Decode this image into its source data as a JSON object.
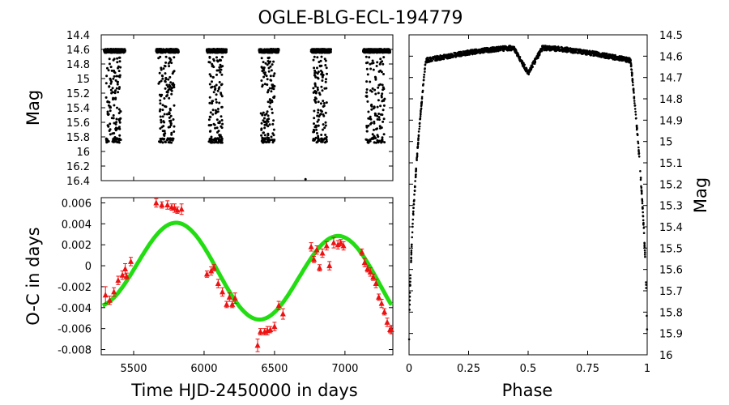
{
  "title": "OGLE-BLG-ECL-194779",
  "chart_data": [
    {
      "id": "lightcurve_time",
      "type": "scatter",
      "xlabel": "",
      "ylabel": "Mag",
      "xlim": [
        5270,
        7340
      ],
      "ylim": [
        14.4,
        16.4
      ],
      "y_inverted": true,
      "y_ticks": [
        "14.4",
        "14.6",
        "14.8",
        "15",
        "15.2",
        "15.4",
        "15.6",
        "15.8",
        "16",
        "16.2",
        "16.4"
      ],
      "y_tick_values": [
        14.4,
        14.6,
        14.8,
        15.0,
        15.2,
        15.4,
        15.6,
        15.8,
        16.0,
        16.2,
        16.4
      ],
      "x_tick_values": [
        5500,
        6000,
        6500,
        7000
      ],
      "seasons": [
        [
          5290,
          5440
        ],
        [
          5660,
          5820
        ],
        [
          6020,
          6160
        ],
        [
          6390,
          6530
        ],
        [
          6760,
          6900
        ],
        [
          7130,
          7320
        ]
      ],
      "baseline_mag": 14.62,
      "eclipse_depth_mag": 15.85,
      "outlier_points": [
        {
          "x": 6720,
          "y": 16.38
        }
      ]
    },
    {
      "id": "oc_diagram",
      "type": "scatter",
      "xlabel": "Time HJD-2450000 in days",
      "ylabel": "O-C in days",
      "xlim": [
        5270,
        7340
      ],
      "ylim": [
        -0.0085,
        0.0065
      ],
      "x_ticks": [
        "5500",
        "6000",
        "6500",
        "7000"
      ],
      "x_tick_values": [
        5500,
        6000,
        6500,
        7000
      ],
      "y_ticks": [
        "0.006",
        "0.004",
        "0.002",
        "0",
        "-0.002",
        "-0.004",
        "-0.006",
        "-0.008"
      ],
      "y_tick_values": [
        0.006,
        0.004,
        0.002,
        0,
        -0.002,
        -0.004,
        -0.006,
        -0.008
      ],
      "points": [
        {
          "x": 5300,
          "y": -0.0028,
          "e": 0.0008
        },
        {
          "x": 5330,
          "y": -0.0033,
          "e": 0.0004
        },
        {
          "x": 5360,
          "y": -0.0025,
          "e": 0.0004
        },
        {
          "x": 5390,
          "y": -0.0014,
          "e": 0.0004
        },
        {
          "x": 5420,
          "y": -0.0009,
          "e": 0.0004
        },
        {
          "x": 5440,
          "y": -0.0003,
          "e": 0.0005
        },
        {
          "x": 5450,
          "y": -0.001,
          "e": 0.0003
        },
        {
          "x": 5480,
          "y": 0.0004,
          "e": 0.0004
        },
        {
          "x": 5660,
          "y": 0.006,
          "e": 0.0004
        },
        {
          "x": 5700,
          "y": 0.0058,
          "e": 0.0003
        },
        {
          "x": 5740,
          "y": 0.0058,
          "e": 0.0004
        },
        {
          "x": 5770,
          "y": 0.0056,
          "e": 0.0003
        },
        {
          "x": 5790,
          "y": 0.0055,
          "e": 0.0004
        },
        {
          "x": 5810,
          "y": 0.0053,
          "e": 0.0003
        },
        {
          "x": 5840,
          "y": 0.0054,
          "e": 0.0005
        },
        {
          "x": 6020,
          "y": -0.0008,
          "e": 0.0003
        },
        {
          "x": 6050,
          "y": -0.0005,
          "e": 0.0004
        },
        {
          "x": 6070,
          "y": -0.0002,
          "e": 0.0003
        },
        {
          "x": 6100,
          "y": -0.0017,
          "e": 0.0004
        },
        {
          "x": 6130,
          "y": -0.0025,
          "e": 0.0004
        },
        {
          "x": 6160,
          "y": -0.0037,
          "e": 0.0003
        },
        {
          "x": 6180,
          "y": -0.003,
          "e": 0.0004
        },
        {
          "x": 6200,
          "y": -0.0037,
          "e": 0.0003
        },
        {
          "x": 6220,
          "y": -0.0031,
          "e": 0.0005
        },
        {
          "x": 6380,
          "y": -0.0076,
          "e": 0.0006
        },
        {
          "x": 6400,
          "y": -0.0063,
          "e": 0.0003
        },
        {
          "x": 6430,
          "y": -0.0063,
          "e": 0.0003
        },
        {
          "x": 6450,
          "y": -0.0062,
          "e": 0.0004
        },
        {
          "x": 6470,
          "y": -0.0061,
          "e": 0.0003
        },
        {
          "x": 6500,
          "y": -0.0058,
          "e": 0.0004
        },
        {
          "x": 6530,
          "y": -0.0038,
          "e": 0.0004
        },
        {
          "x": 6560,
          "y": -0.0046,
          "e": 0.0005
        },
        {
          "x": 6760,
          "y": 0.0018,
          "e": 0.0004
        },
        {
          "x": 6780,
          "y": 0.0006,
          "e": 0.0003
        },
        {
          "x": 6800,
          "y": 0.0015,
          "e": 0.0004
        },
        {
          "x": 6820,
          "y": -0.0002,
          "e": 0.0003
        },
        {
          "x": 6840,
          "y": 0.0012,
          "e": 0.0004
        },
        {
          "x": 6870,
          "y": 0.0019,
          "e": 0.0004
        },
        {
          "x": 6890,
          "y": 0.0,
          "e": 0.0004
        },
        {
          "x": 6920,
          "y": 0.0022,
          "e": 0.0005
        },
        {
          "x": 6950,
          "y": 0.002,
          "e": 0.0004
        },
        {
          "x": 6970,
          "y": 0.0022,
          "e": 0.0003
        },
        {
          "x": 6990,
          "y": 0.0019,
          "e": 0.0004
        },
        {
          "x": 7120,
          "y": 0.0013,
          "e": 0.0003
        },
        {
          "x": 7140,
          "y": 0.0003,
          "e": 0.0004
        },
        {
          "x": 7160,
          "y": -0.0003,
          "e": 0.0003
        },
        {
          "x": 7180,
          "y": -0.0006,
          "e": 0.0004
        },
        {
          "x": 7200,
          "y": -0.0011,
          "e": 0.0003
        },
        {
          "x": 7220,
          "y": -0.0017,
          "e": 0.0004
        },
        {
          "x": 7240,
          "y": -0.003,
          "e": 0.0003
        },
        {
          "x": 7260,
          "y": -0.0036,
          "e": 0.0004
        },
        {
          "x": 7280,
          "y": -0.0044,
          "e": 0.0003
        },
        {
          "x": 7300,
          "y": -0.0054,
          "e": 0.0004
        },
        {
          "x": 7320,
          "y": -0.0061,
          "e": 0.0003
        },
        {
          "x": 7330,
          "y": -0.0061,
          "e": 0.0004
        }
      ],
      "fit": {
        "offset": -0.0002,
        "amplitude": 0.0043,
        "period": 1150,
        "peak_x": 5810,
        "trend_per_day": -1.1e-06,
        "color": "#22dd11"
      },
      "point_color": "#ee1111"
    },
    {
      "id": "phased_lightcurve",
      "type": "scatter",
      "xlabel": "Phase",
      "ylabel": "Mag",
      "xlim": [
        0,
        1
      ],
      "ylim": [
        14.5,
        16.0
      ],
      "y_inverted": true,
      "x_ticks": [
        "0",
        "0.25",
        "0.5",
        "0.75",
        "1"
      ],
      "x_tick_values": [
        0,
        0.25,
        0.5,
        0.75,
        1
      ],
      "y_ticks": [
        "14.5",
        "14.6",
        "14.7",
        "14.8",
        "14.9",
        "15",
        "15.1",
        "15.2",
        "15.3",
        "15.4",
        "15.5",
        "15.6",
        "15.7",
        "15.8",
        "15.9",
        "16"
      ],
      "y_tick_values": [
        14.5,
        14.6,
        14.7,
        14.8,
        14.9,
        15.0,
        15.1,
        15.2,
        15.3,
        15.4,
        15.5,
        15.6,
        15.7,
        15.8,
        15.9,
        16.0
      ],
      "out_of_eclipse_mag": 14.56,
      "primary_eclipse_depth_mag": 15.98,
      "secondary_eclipse_depth_mag": 14.68,
      "ingress_phase": 0.93,
      "egress_phase": 0.07
    }
  ]
}
